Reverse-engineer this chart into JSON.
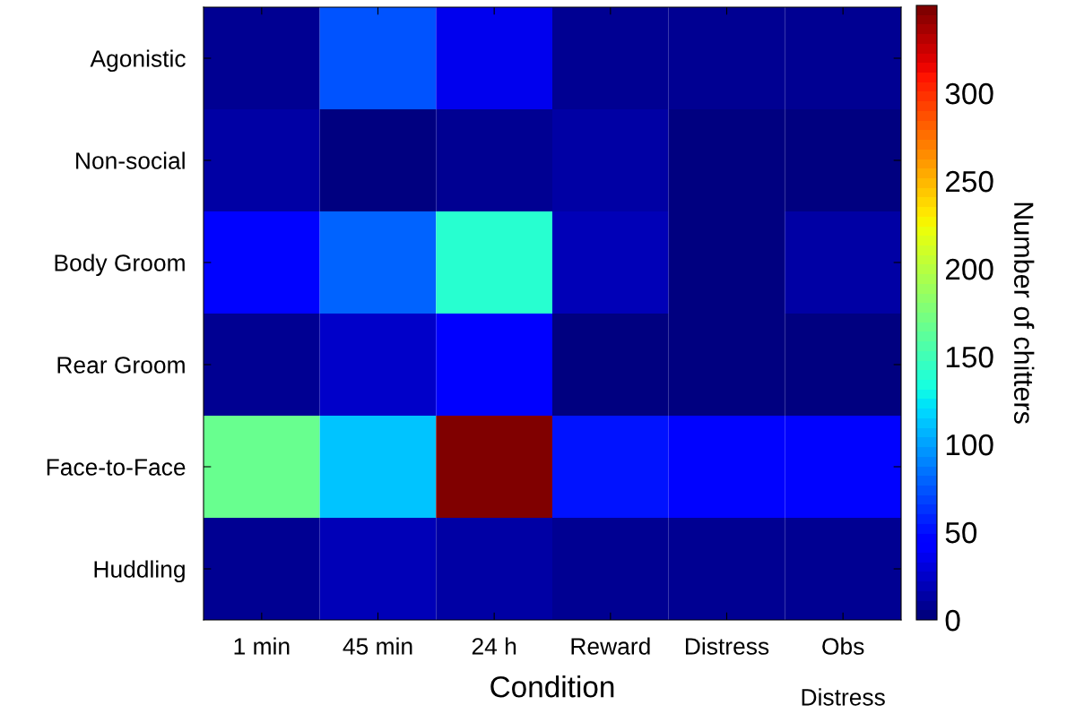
{
  "chart_data": {
    "type": "heatmap",
    "xlabel": "Condition",
    "clabel": "Number of chitters",
    "categories": [
      "1 min",
      "45 min",
      "24 h",
      "Reward",
      "Distress",
      "Obs\n\nDistress"
    ],
    "y_categories": [
      "Agonistic",
      "Non-social",
      "Body Groom",
      "Rear Groom",
      "Face-to-Face",
      "Huddling"
    ],
    "cells": [
      [
        8,
        74,
        35,
        9,
        9,
        6
      ],
      [
        13,
        4,
        10,
        12,
        5,
        5
      ],
      [
        47,
        80,
        140,
        17,
        4,
        14
      ],
      [
        6,
        22,
        40,
        4,
        4,
        4
      ],
      [
        166,
        110,
        345,
        50,
        45,
        45
      ],
      [
        6,
        20,
        15,
        8,
        8,
        8
      ]
    ],
    "clim": [
      0,
      350
    ],
    "cticks": [
      0,
      50,
      100,
      150,
      200,
      250,
      300
    ]
  }
}
